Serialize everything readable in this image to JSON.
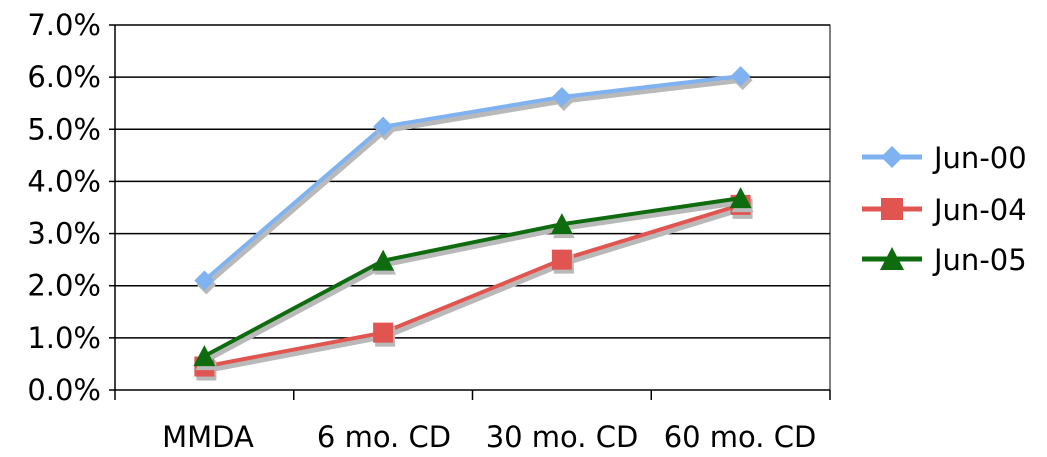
{
  "chart_data": {
    "type": "line",
    "title": "",
    "xlabel": "",
    "ylabel": "",
    "categories": [
      "MMDA",
      "6 mo. CD",
      "30 mo. CD",
      "60 mo. CD"
    ],
    "ylim": [
      0,
      7
    ],
    "y_ticks": [
      0,
      1,
      2,
      3,
      4,
      5,
      6,
      7
    ],
    "y_tick_labels": [
      "0.0%",
      "1.0%",
      "2.0%",
      "3.0%",
      "4.0%",
      "5.0%",
      "6.0%",
      "7.0%"
    ],
    "y_unit": "%",
    "grid": "horizontal",
    "legend_position": "right",
    "series": [
      {
        "name": "Jun-00",
        "values": [
          2.1,
          5.05,
          5.62,
          6.02
        ],
        "color": "#7fb2f0",
        "marker": "diamond"
      },
      {
        "name": "Jun-04",
        "values": [
          0.45,
          1.1,
          2.5,
          3.55
        ],
        "color": "#e05550",
        "marker": "square"
      },
      {
        "name": "Jun-05",
        "values": [
          0.65,
          2.48,
          3.18,
          3.68
        ],
        "color": "#0e6b0e",
        "marker": "triangle"
      }
    ]
  }
}
